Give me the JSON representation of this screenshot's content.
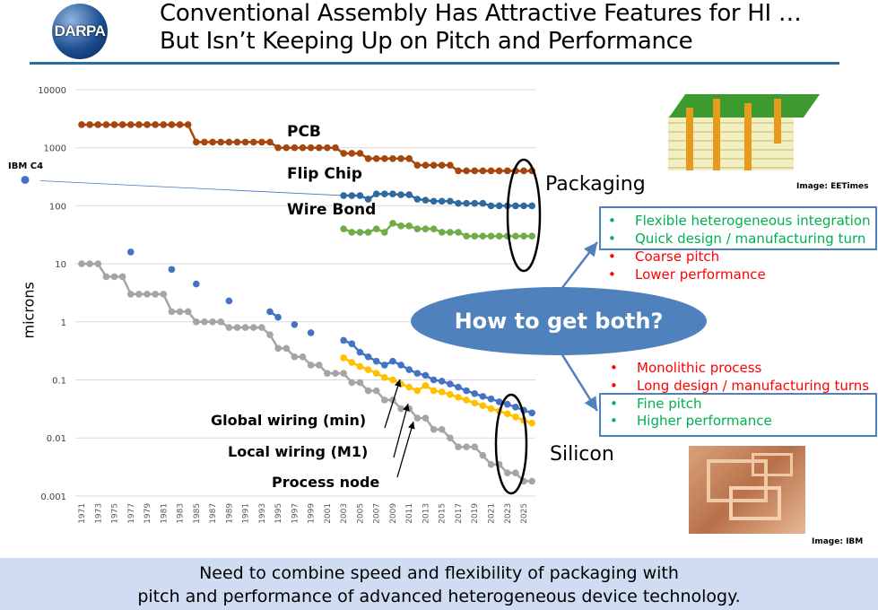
{
  "header": {
    "logo_text": "DARPA",
    "title_line1": "Conventional Assembly Has Attractive Features for HI …",
    "title_line2": "But Isn’t Keeping Up on Pitch and Performance"
  },
  "chart_data": {
    "type": "line",
    "ylabel": "microns",
    "yscale": "log",
    "ylim": [
      0.001,
      10000
    ],
    "yticks": [
      "10000",
      "1000",
      "100",
      "10",
      "1",
      "0.1",
      "0.01",
      "0.001"
    ],
    "xlim": [
      1971,
      2026
    ],
    "xticks": [
      "1971",
      "1973",
      "1975",
      "1977",
      "1979",
      "1981",
      "1983",
      "1985",
      "1987",
      "1989",
      "1991",
      "1993",
      "1995",
      "1997",
      "1999",
      "2001",
      "2003",
      "2005",
      "2007",
      "2009",
      "2011",
      "2013",
      "2015",
      "2017",
      "2019",
      "2021",
      "2023",
      "2025"
    ],
    "grid": true,
    "series": [
      {
        "name": "PCB",
        "color": "#a5460f",
        "x": [
          1971,
          1972,
          1973,
          1974,
          1975,
          1976,
          1977,
          1978,
          1979,
          1980,
          1981,
          1982,
          1983,
          1984,
          1985,
          1986,
          1987,
          1988,
          1989,
          1990,
          1991,
          1992,
          1993,
          1994,
          1995,
          1996,
          1997,
          1998,
          1999,
          2000,
          2001,
          2002,
          2003,
          2004,
          2005,
          2006,
          2007,
          2008,
          2009,
          2010,
          2011,
          2012,
          2013,
          2014,
          2015,
          2016,
          2017,
          2018,
          2019,
          2020,
          2021,
          2022,
          2023,
          2024,
          2025,
          2026
        ],
        "y": [
          2500,
          2500,
          2500,
          2500,
          2500,
          2500,
          2500,
          2500,
          2500,
          2500,
          2500,
          2500,
          2500,
          2500,
          1250,
          1250,
          1250,
          1250,
          1250,
          1250,
          1250,
          1250,
          1250,
          1250,
          1000,
          1000,
          1000,
          1000,
          1000,
          1000,
          1000,
          1000,
          800,
          800,
          800,
          650,
          650,
          650,
          650,
          650,
          650,
          500,
          500,
          500,
          500,
          500,
          400,
          400,
          400,
          400,
          400,
          400,
          400,
          400,
          400,
          400
        ]
      },
      {
        "name": "Flip Chip",
        "color": "#2e6a9e",
        "x": [
          2003,
          2004,
          2005,
          2006,
          2007,
          2008,
          2009,
          2010,
          2011,
          2012,
          2013,
          2014,
          2015,
          2016,
          2017,
          2018,
          2019,
          2020,
          2021,
          2022,
          2023,
          2024,
          2025,
          2026
        ],
        "y": [
          150,
          150,
          150,
          130,
          160,
          160,
          160,
          155,
          155,
          130,
          125,
          120,
          120,
          120,
          110,
          110,
          110,
          110,
          100,
          100,
          100,
          100,
          100,
          100
        ]
      },
      {
        "name": "Wire Bond",
        "color": "#70ad47",
        "x": [
          2003,
          2004,
          2005,
          2006,
          2007,
          2008,
          2009,
          2010,
          2011,
          2012,
          2013,
          2014,
          2015,
          2016,
          2017,
          2018,
          2019,
          2020,
          2021,
          2022,
          2023,
          2024,
          2025,
          2026
        ],
        "y": [
          40,
          35,
          35,
          35,
          40,
          35,
          50,
          45,
          45,
          40,
          40,
          40,
          35,
          35,
          35,
          30,
          30,
          30,
          30,
          30,
          30,
          30,
          30,
          30
        ]
      },
      {
        "name": "Process node",
        "color": "#a5a5a5",
        "x": [
          1971,
          1972,
          1973,
          1974,
          1975,
          1976,
          1977,
          1978,
          1979,
          1980,
          1981,
          1982,
          1983,
          1984,
          1985,
          1986,
          1987,
          1988,
          1989,
          1990,
          1991,
          1992,
          1993,
          1994,
          1995,
          1996,
          1997,
          1998,
          1999,
          2000,
          2001,
          2002,
          2003,
          2004,
          2005,
          2006,
          2007,
          2008,
          2009,
          2010,
          2011,
          2012,
          2013,
          2014,
          2015,
          2016,
          2017,
          2018,
          2019,
          2020,
          2021,
          2022,
          2023,
          2024,
          2025,
          2026
        ],
        "y": [
          10,
          10,
          10,
          6,
          6,
          6,
          3,
          3,
          3,
          3,
          3,
          1.5,
          1.5,
          1.5,
          1,
          1,
          1,
          1,
          0.8,
          0.8,
          0.8,
          0.8,
          0.8,
          0.6,
          0.35,
          0.35,
          0.25,
          0.25,
          0.18,
          0.18,
          0.13,
          0.13,
          0.13,
          0.09,
          0.09,
          0.065,
          0.065,
          0.045,
          0.045,
          0.032,
          0.032,
          0.022,
          0.022,
          0.014,
          0.014,
          0.01,
          0.007,
          0.007,
          0.007,
          0.005,
          0.0035,
          0.0035,
          0.0025,
          0.0025,
          0.0018,
          0.0018
        ]
      },
      {
        "name": "Global wiring (min)",
        "color": "#4472c4",
        "x": [
          2003,
          2004,
          2005,
          2006,
          2007,
          2008,
          2009,
          2010,
          2011,
          2012,
          2013,
          2014,
          2015,
          2016,
          2017,
          2018,
          2019,
          2020,
          2021,
          2022,
          2023,
          2024,
          2025,
          2026
        ],
        "y": [
          0.48,
          0.42,
          0.3,
          0.25,
          0.21,
          0.18,
          0.21,
          0.18,
          0.15,
          0.13,
          0.12,
          0.1,
          0.095,
          0.085,
          0.075,
          0.065,
          0.058,
          0.052,
          0.047,
          0.042,
          0.038,
          0.034,
          0.03,
          0.027
        ]
      },
      {
        "name": "Local wiring (M1)",
        "color": "#ffc000",
        "x": [
          2003,
          2004,
          2005,
          2006,
          2007,
          2008,
          2009,
          2010,
          2011,
          2012,
          2013,
          2014,
          2015,
          2016,
          2017,
          2018,
          2019,
          2020,
          2021,
          2022,
          2023,
          2024,
          2025,
          2026
        ],
        "y": [
          0.24,
          0.2,
          0.17,
          0.15,
          0.13,
          0.11,
          0.1,
          0.085,
          0.075,
          0.065,
          0.08,
          0.065,
          0.062,
          0.056,
          0.05,
          0.045,
          0.04,
          0.036,
          0.032,
          0.029,
          0.026,
          0.023,
          0.02,
          0.018
        ]
      }
    ],
    "scatter_points": {
      "color": "#4472c4",
      "x": [
        1977,
        1982,
        1985,
        1989,
        1994,
        1995,
        1997,
        1999
      ],
      "y": [
        16,
        8,
        4.5,
        2.3,
        1.5,
        1.2,
        0.9,
        0.65
      ]
    },
    "ibm_c4": {
      "label": "IBM C4",
      "x": 1964,
      "y": 280,
      "trend_to": {
        "x": 2003,
        "y": 150
      }
    },
    "group_labels": {
      "packaging": "Packaging",
      "silicon": "Silicon"
    }
  },
  "callout": {
    "question": "How to get both?",
    "packaging_pros": [
      "Flexible heterogeneous integration",
      "Quick design / manufacturing turn"
    ],
    "packaging_cons": [
      "Coarse pitch",
      "Lower performance"
    ],
    "silicon_cons": [
      "Monolithic process",
      "Long design / manufacturing turns"
    ],
    "silicon_pros": [
      "Fine pitch",
      "Higher performance"
    ],
    "bullet": "•",
    "pro_color": "#00b050",
    "con_color": "#ff0000"
  },
  "images": {
    "pcb_caption": "Image: EETimes",
    "chip_caption": "Image: IBM"
  },
  "footer": {
    "line1": "Need to combine speed and flexibility of packaging with",
    "line2": "pitch and performance of advanced heterogeneous device technology."
  }
}
